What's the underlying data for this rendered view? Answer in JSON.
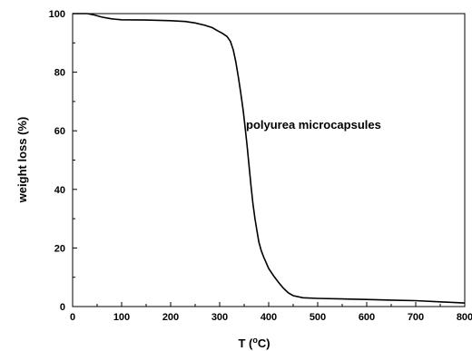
{
  "chart_data": {
    "type": "line",
    "title": "",
    "xlabel": "T (°C)",
    "xlabel_main": "T (",
    "xlabel_degree": "o",
    "xlabel_unit": "C)",
    "ylabel": "weight loss (%)",
    "xlim": [
      0,
      800
    ],
    "ylim": [
      0,
      100
    ],
    "xticks": [
      "0",
      "100",
      "200",
      "300",
      "400",
      "500",
      "600",
      "700",
      "800"
    ],
    "yticks": [
      "0",
      "20",
      "40",
      "60",
      "80",
      "100"
    ],
    "grid": false,
    "annotation": "polyurea microcapsules",
    "series": [
      {
        "name": "polyurea microcapsules",
        "color": "#000000",
        "x": [
          0,
          30,
          45,
          60,
          80,
          100,
          150,
          200,
          230,
          250,
          270,
          285,
          295,
          305,
          315,
          322,
          328,
          333,
          338,
          343,
          348,
          352,
          356,
          360,
          364,
          368,
          372,
          376,
          380,
          385,
          390,
          400,
          410,
          420,
          430,
          440,
          450,
          470,
          500,
          550,
          600,
          650,
          700,
          750,
          800
        ],
        "y": [
          100,
          100,
          99.5,
          98.8,
          98.2,
          97.9,
          97.8,
          97.6,
          97.3,
          96.8,
          96.0,
          95.2,
          94.2,
          93.3,
          92.2,
          90.5,
          87.5,
          83.5,
          78.5,
          73,
          67,
          61,
          55,
          48,
          41,
          35,
          30,
          26,
          22,
          19,
          16.8,
          13,
          10.5,
          8.3,
          6.3,
          4.7,
          3.7,
          3.0,
          2.8,
          2.6,
          2.4,
          2.2,
          2.0,
          1.6,
          1.2
        ]
      }
    ]
  }
}
